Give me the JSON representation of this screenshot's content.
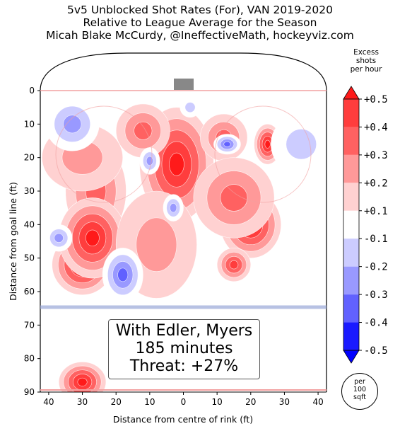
{
  "title_lines": [
    "5v5 Unblocked Shot Rates (For), VAN 2019-2020",
    "Relative to League Average for the Season",
    "Micah Blake McCurdy, @IneffectiveMath, hockeyviz.com"
  ],
  "colorbar": {
    "title_lines": [
      "Excess",
      "shots",
      "per hour"
    ],
    "ticks": [
      "+0.5",
      "+0.4",
      "+0.3",
      "+0.2",
      "+0.1",
      "-0.1",
      "-0.2",
      "-0.3",
      "-0.4",
      "-0.5"
    ],
    "colors": [
      "#ff1a1a",
      "#ff3d3d",
      "#ff6161",
      "#ff9999",
      "#ffd1d1",
      "#ffffff",
      "#ccccff",
      "#9999ff",
      "#6161ff",
      "#1a1aff",
      "#0000ff"
    ]
  },
  "unit_lines": [
    "per",
    "100",
    "sqft"
  ],
  "info_box": [
    "With Edler, Myers",
    "185 minutes",
    "Threat: +27%"
  ],
  "chart_data": {
    "type": "heatmap",
    "xlabel": "Distance from centre of rink (ft)",
    "ylabel": "Distance from goal line (ft)",
    "xlim": [
      42.5,
      -42.5
    ],
    "ylim": [
      90,
      -11
    ],
    "xticks": [
      "40",
      "30",
      "20",
      "10",
      "0",
      "10",
      "20",
      "30",
      "40"
    ],
    "yticks": [
      "0",
      "10",
      "20",
      "30",
      "40",
      "50",
      "60",
      "70",
      "80",
      "90"
    ],
    "value_range": [
      -0.5,
      0.5
    ],
    "blobs": [
      {
        "x": 2,
        "y": 22,
        "rx": 11,
        "ry": 17,
        "v": 0.5
      },
      {
        "x": 12,
        "y": 12,
        "rx": 8,
        "ry": 8,
        "v": 0.3
      },
      {
        "x": -12,
        "y": 14,
        "rx": 7,
        "ry": 7,
        "v": 0.3
      },
      {
        "x": 25,
        "y": 23,
        "rx": 5,
        "ry": 5,
        "v": 0.45
      },
      {
        "x": 26,
        "y": 30,
        "rx": 9,
        "ry": 14,
        "v": 0.25
      },
      {
        "x": 30,
        "y": 52,
        "rx": 9,
        "ry": 9,
        "v": 0.5
      },
      {
        "x": 27,
        "y": 44,
        "rx": 10,
        "ry": 12,
        "v": 0.5
      },
      {
        "x": 30,
        "y": 20,
        "rx": 12,
        "ry": 10,
        "v": 0.15
      },
      {
        "x": -20,
        "y": 40,
        "rx": 9,
        "ry": 10,
        "v": 0.5
      },
      {
        "x": -15,
        "y": 32,
        "rx": 12,
        "ry": 12,
        "v": 0.25
      },
      {
        "x": -25,
        "y": 16,
        "rx": 4,
        "ry": 6,
        "v": 0.45
      },
      {
        "x": -15,
        "y": 52,
        "rx": 5,
        "ry": 5,
        "v": 0.4
      },
      {
        "x": 8,
        "y": 46,
        "rx": 12,
        "ry": 16,
        "v": 0.15
      },
      {
        "x": 30,
        "y": 87,
        "rx": 7,
        "ry": 6,
        "v": 0.5
      },
      {
        "x": 10,
        "y": 21,
        "rx": 3,
        "ry": 4,
        "v": -0.3
      },
      {
        "x": -13,
        "y": 16,
        "rx": 4,
        "ry": 3,
        "v": -0.4
      },
      {
        "x": 3,
        "y": 35,
        "rx": 3,
        "ry": 4,
        "v": -0.3
      },
      {
        "x": 18,
        "y": 55,
        "rx": 6,
        "ry": 8,
        "v": -0.35
      },
      {
        "x": 33,
        "y": 10,
        "rx": 8,
        "ry": 8,
        "v": -0.25
      },
      {
        "x": 37,
        "y": 44,
        "rx": 4,
        "ry": 4,
        "v": -0.25
      },
      {
        "x": -35,
        "y": 16,
        "rx": 9,
        "ry": 9,
        "v": -0.2
      },
      {
        "x": -15,
        "y": 74,
        "rx": 24,
        "ry": 12,
        "v": -0.12
      },
      {
        "x": -2,
        "y": 5,
        "rx": 3,
        "ry": 3,
        "v": -0.15
      }
    ]
  }
}
